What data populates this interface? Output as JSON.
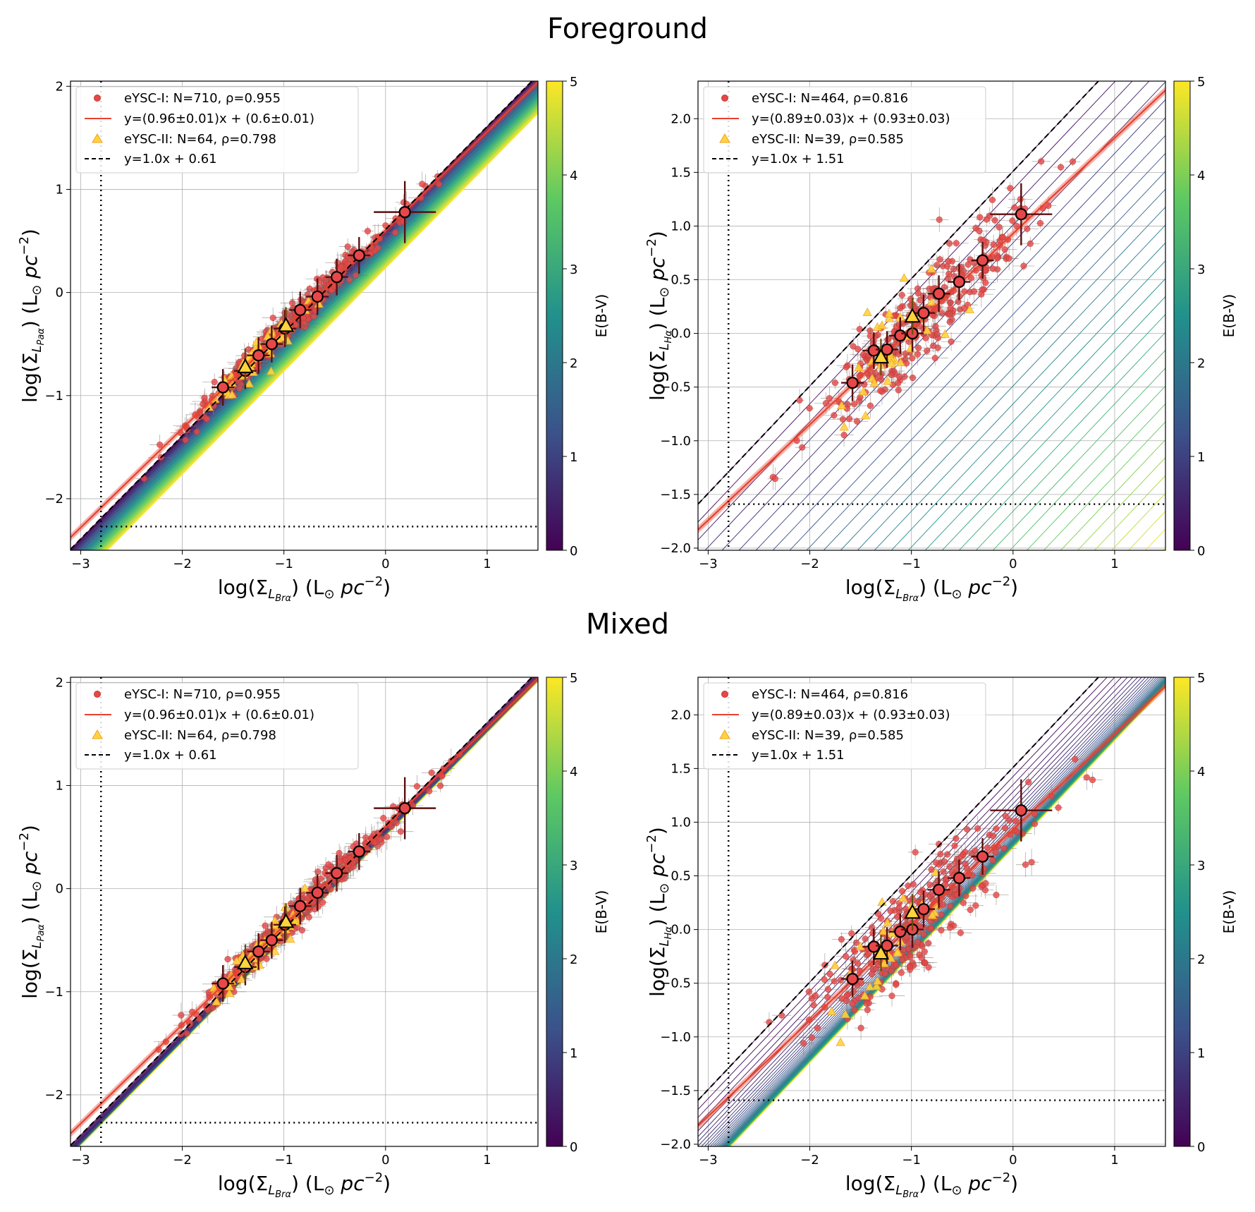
{
  "sections": [
    {
      "title": "Foreground"
    },
    {
      "title": "Mixed"
    }
  ],
  "colors": {
    "eysc1": "#e8474a",
    "eysc1_edge": "#c0392b",
    "eysc2": "#ffd43b",
    "eysc2_edge": "#f0a020",
    "fit": "#e8412f",
    "ref": "#000000",
    "binned_edge": "#000000",
    "viridis": [
      "#440154",
      "#3b528b",
      "#21918c",
      "#5ec962",
      "#fde725"
    ]
  },
  "chart_data": [
    {
      "type": "scatter",
      "panel": "foreground-pa",
      "xlabel_main": "log(Σ",
      "xlabel_sub": "L",
      "xlabel_subsub": "Brα",
      "xlabel_unit": ") (L",
      "xlabel_sun": "⊙",
      "xlabel_pc": " pc",
      "xlabel_exp": "−2",
      "xlabel_close": ")",
      "ylabel_main": "log(Σ",
      "ylabel_sub": "L",
      "ylabel_subsub": "Paα",
      "ylabel_unit": ") (L",
      "ylabel_sun": "⊙",
      "ylabel_pc": " pc",
      "ylabel_exp": "−2",
      "ylabel_close": ")",
      "xlim": [
        -3.1,
        1.5
      ],
      "ylim": [
        -2.5,
        2.05
      ],
      "xticks": [
        -3,
        -2,
        -1,
        0,
        1
      ],
      "xtick_labels": [
        "−3",
        "−2",
        "−1",
        "0",
        "1"
      ],
      "yticks": [
        -2,
        -1,
        0,
        1,
        2
      ],
      "ytick_labels": [
        "−2",
        "−1",
        "0",
        "1",
        "2"
      ],
      "grid": true,
      "legend_position": "top-left",
      "legend": [
        "eYSC-I: N=710, ρ=0.955",
        "y=(0.96±0.01)x + (0.6±0.01)",
        "eYSC-II: N=64, ρ=0.798",
        "y=1.0x + 0.61"
      ],
      "fit": {
        "slope": 0.96,
        "intercept": 0.6
      },
      "reference": {
        "slope": 1.0,
        "intercept": 0.61
      },
      "xlimit_line": -2.8,
      "ylimit_line": -2.27,
      "ebv_model": "foreground",
      "ebv_offset_per_unit": 0.075,
      "colorbar": {
        "label": "E(B-V)",
        "range": [
          0,
          5
        ],
        "ticks": [
          "0",
          "1",
          "2",
          "3",
          "4",
          "5"
        ]
      },
      "binned": [
        {
          "x": -1.6,
          "y": -0.92
        },
        {
          "x": -1.38,
          "y": -0.76
        },
        {
          "x": -1.25,
          "y": -0.61
        },
        {
          "x": -1.12,
          "y": -0.5
        },
        {
          "x": -0.99,
          "y": -0.35
        },
        {
          "x": -0.84,
          "y": -0.17
        },
        {
          "x": -0.67,
          "y": -0.04
        },
        {
          "x": -0.48,
          "y": 0.15
        },
        {
          "x": -0.26,
          "y": 0.36
        },
        {
          "x": 0.19,
          "y": 0.78
        }
      ],
      "binned_eysc2": [
        {
          "x": -1.38,
          "y": -0.72
        },
        {
          "x": -0.98,
          "y": -0.32
        }
      ],
      "eysc1_n": 710,
      "eysc2_n": 64
    },
    {
      "type": "scatter",
      "panel": "foreground-ha",
      "xlabel_main": "log(Σ",
      "xlabel_sub": "L",
      "xlabel_subsub": "Brα",
      "xlabel_unit": ") (L",
      "xlabel_sun": "⊙",
      "xlabel_pc": " pc",
      "xlabel_exp": "−2",
      "xlabel_close": ")",
      "ylabel_main": "log(Σ",
      "ylabel_sub": "L",
      "ylabel_subsub": "Hα",
      "ylabel_unit": ") (L",
      "ylabel_sun": "⊙",
      "ylabel_pc": " pc",
      "ylabel_exp": "−2",
      "ylabel_close": ")",
      "xlim": [
        -3.1,
        1.5
      ],
      "ylim": [
        -2.02,
        2.35
      ],
      "xticks": [
        -3,
        -2,
        -1,
        0,
        1
      ],
      "xtick_labels": [
        "−3",
        "−2",
        "−1",
        "0",
        "1"
      ],
      "yticks": [
        -2.0,
        -1.5,
        -1.0,
        -0.5,
        0.0,
        0.5,
        1.0,
        1.5,
        2.0
      ],
      "ytick_labels": [
        "−2.0",
        "−1.5",
        "−1.0",
        "−0.5",
        "0.0",
        "0.5",
        "1.0",
        "1.5",
        "2.0"
      ],
      "grid": true,
      "legend_position": "top-left",
      "legend": [
        "eYSC-I: N=464, ρ=0.816",
        "y=(0.89±0.03)x + (0.93±0.03)",
        "eYSC-II: N=39, ρ=0.585",
        "y=1.0x + 1.51"
      ],
      "fit": {
        "slope": 0.89,
        "intercept": 0.93
      },
      "reference": {
        "slope": 1.0,
        "intercept": 1.51
      },
      "xlimit_line": -2.8,
      "ylimit_line": -1.59,
      "ebv_model": "foreground",
      "ebv_offset_per_unit": 1.0,
      "colorbar": {
        "label": "E(B-V)",
        "range": [
          0,
          5
        ],
        "ticks": [
          "0",
          "1",
          "2",
          "3",
          "4",
          "5"
        ]
      },
      "binned": [
        {
          "x": -1.58,
          "y": -0.46
        },
        {
          "x": -1.37,
          "y": -0.16
        },
        {
          "x": -1.24,
          "y": -0.15
        },
        {
          "x": -1.11,
          "y": -0.02
        },
        {
          "x": -0.99,
          "y": 0.0
        },
        {
          "x": -0.88,
          "y": 0.19
        },
        {
          "x": -0.73,
          "y": 0.37
        },
        {
          "x": -0.53,
          "y": 0.48
        },
        {
          "x": -0.3,
          "y": 0.68
        },
        {
          "x": 0.08,
          "y": 1.11
        }
      ],
      "binned_eysc2": [
        {
          "x": -1.3,
          "y": -0.22
        },
        {
          "x": -0.99,
          "y": 0.16
        }
      ],
      "eysc1_n": 464,
      "eysc2_n": 39
    },
    {
      "type": "scatter",
      "panel": "mixed-pa",
      "xlabel_main": "log(Σ",
      "xlabel_sub": "L",
      "xlabel_subsub": "Brα",
      "xlabel_unit": ") (L",
      "xlabel_sun": "⊙",
      "xlabel_pc": " pc",
      "xlabel_exp": "−2",
      "xlabel_close": ")",
      "ylabel_main": "log(Σ",
      "ylabel_sub": "L",
      "ylabel_subsub": "Paα",
      "ylabel_unit": ") (L",
      "ylabel_sun": "⊙",
      "ylabel_pc": " pc",
      "ylabel_exp": "−2",
      "ylabel_close": ")",
      "xlim": [
        -3.1,
        1.5
      ],
      "ylim": [
        -2.5,
        2.05
      ],
      "xticks": [
        -3,
        -2,
        -1,
        0,
        1
      ],
      "xtick_labels": [
        "−3",
        "−2",
        "−1",
        "0",
        "1"
      ],
      "yticks": [
        -2,
        -1,
        0,
        1,
        2
      ],
      "ytick_labels": [
        "−2",
        "−1",
        "0",
        "1",
        "2"
      ],
      "grid": true,
      "legend_position": "top-left",
      "legend": [
        "eYSC-I: N=710, ρ=0.955",
        "y=(0.96±0.01)x + (0.6±0.01)",
        "eYSC-II: N=64, ρ=0.798",
        "y=1.0x + 0.61"
      ],
      "fit": {
        "slope": 0.96,
        "intercept": 0.6
      },
      "reference": {
        "slope": 1.0,
        "intercept": 0.61
      },
      "xlimit_line": -2.8,
      "ylimit_line": -2.27,
      "ebv_model": "mixed",
      "ebv_max_offset": 0.1,
      "colorbar": {
        "label": "E(B-V)",
        "range": [
          0,
          5
        ],
        "ticks": [
          "0",
          "1",
          "2",
          "3",
          "4",
          "5"
        ]
      },
      "binned": [
        {
          "x": -1.6,
          "y": -0.92
        },
        {
          "x": -1.38,
          "y": -0.76
        },
        {
          "x": -1.25,
          "y": -0.61
        },
        {
          "x": -1.12,
          "y": -0.5
        },
        {
          "x": -0.99,
          "y": -0.35
        },
        {
          "x": -0.84,
          "y": -0.17
        },
        {
          "x": -0.67,
          "y": -0.04
        },
        {
          "x": -0.48,
          "y": 0.15
        },
        {
          "x": -0.26,
          "y": 0.36
        },
        {
          "x": 0.19,
          "y": 0.78
        }
      ],
      "binned_eysc2": [
        {
          "x": -1.38,
          "y": -0.72
        },
        {
          "x": -0.98,
          "y": -0.32
        }
      ],
      "eysc1_n": 710,
      "eysc2_n": 64
    },
    {
      "type": "scatter",
      "panel": "mixed-ha",
      "xlabel_main": "log(Σ",
      "xlabel_sub": "L",
      "xlabel_subsub": "Brα",
      "xlabel_unit": ") (L",
      "xlabel_sun": "⊙",
      "xlabel_pc": " pc",
      "xlabel_exp": "−2",
      "xlabel_close": ")",
      "ylabel_main": "log(Σ",
      "ylabel_sub": "L",
      "ylabel_subsub": "Hα",
      "ylabel_unit": ") (L",
      "ylabel_sun": "⊙",
      "ylabel_pc": " pc",
      "ylabel_exp": "−2",
      "ylabel_close": ")",
      "xlim": [
        -3.1,
        1.5
      ],
      "ylim": [
        -2.02,
        2.35
      ],
      "xticks": [
        -3,
        -2,
        -1,
        0,
        1
      ],
      "xtick_labels": [
        "−3",
        "−2",
        "−1",
        "0",
        "1"
      ],
      "yticks": [
        -2.0,
        -1.5,
        -1.0,
        -0.5,
        0.0,
        0.5,
        1.0,
        1.5,
        2.0
      ],
      "ytick_labels": [
        "−2.0",
        "−1.5",
        "−1.0",
        "−0.5",
        "0.0",
        "0.5",
        "1.0",
        "1.5",
        "2.0"
      ],
      "grid": true,
      "legend_position": "top-left",
      "legend": [
        "eYSC-I: N=464, ρ=0.816",
        "y=(0.89±0.03)x + (0.93±0.03)",
        "eYSC-II: N=39, ρ=0.585",
        "y=1.0x + 1.51"
      ],
      "fit": {
        "slope": 0.89,
        "intercept": 0.93
      },
      "reference": {
        "slope": 1.0,
        "intercept": 1.51
      },
      "xlimit_line": -2.8,
      "ylimit_line": -1.59,
      "ebv_model": "mixed",
      "ebv_max_offset": 0.75,
      "colorbar": {
        "label": "E(B-V)",
        "range": [
          0,
          5
        ],
        "ticks": [
          "0",
          "1",
          "2",
          "3",
          "4",
          "5"
        ]
      },
      "binned": [
        {
          "x": -1.58,
          "y": -0.46
        },
        {
          "x": -1.37,
          "y": -0.16
        },
        {
          "x": -1.24,
          "y": -0.15
        },
        {
          "x": -1.11,
          "y": -0.02
        },
        {
          "x": -0.99,
          "y": 0.0
        },
        {
          "x": -0.88,
          "y": 0.19
        },
        {
          "x": -0.73,
          "y": 0.37
        },
        {
          "x": -0.53,
          "y": 0.48
        },
        {
          "x": -0.3,
          "y": 0.68
        },
        {
          "x": 0.08,
          "y": 1.11
        }
      ],
      "binned_eysc2": [
        {
          "x": -1.3,
          "y": -0.22
        },
        {
          "x": -0.99,
          "y": 0.16
        }
      ],
      "eysc1_n": 464,
      "eysc2_n": 39
    }
  ]
}
